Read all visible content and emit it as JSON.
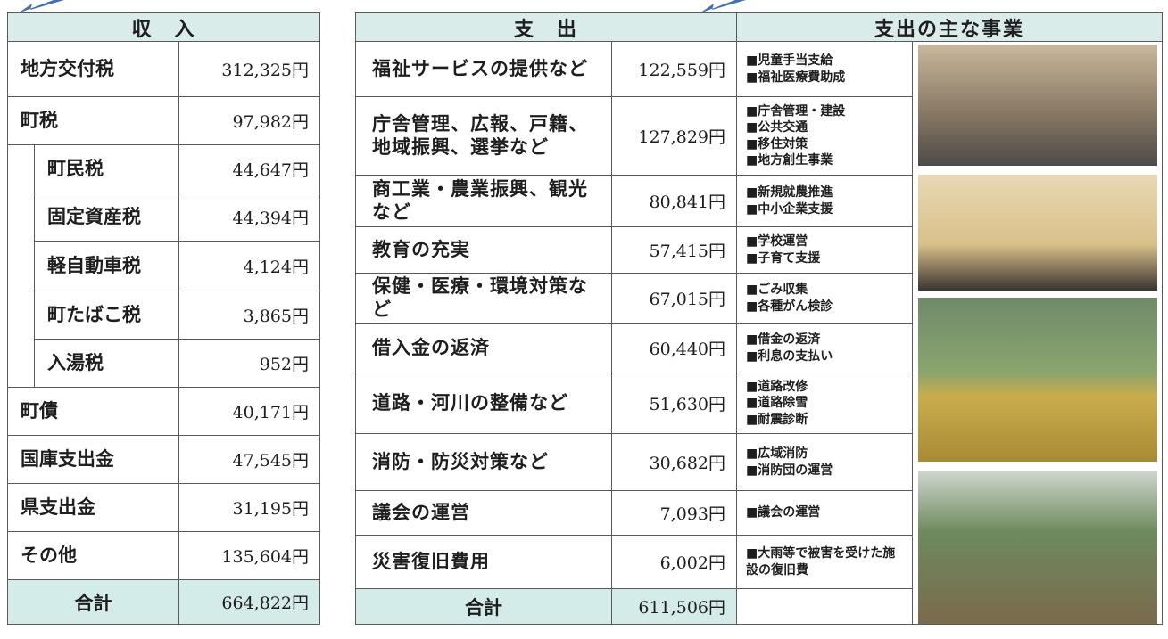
{
  "income": {
    "header": "収　入",
    "rows": [
      {
        "label": "地方交付税",
        "amount": "312,325円"
      },
      {
        "label": "町税",
        "amount": "97,982円",
        "items": [
          {
            "label": "町民税",
            "amount": "44,647円"
          },
          {
            "label": "固定資産税",
            "amount": "44,394円"
          },
          {
            "label": "軽自動車税",
            "amount": "4,124円"
          },
          {
            "label": "町たばこ税",
            "amount": "3,865円"
          },
          {
            "label": "入湯税",
            "amount": "952円"
          }
        ]
      },
      {
        "label": "町債",
        "amount": "40,171円"
      },
      {
        "label": "国庫支出金",
        "amount": "47,545円"
      },
      {
        "label": "県支出金",
        "amount": "31,195円"
      },
      {
        "label": "その他",
        "amount": "135,604円"
      }
    ],
    "total": {
      "label": "合計",
      "amount": "664,822円"
    }
  },
  "expenditure": {
    "header": "支　出",
    "projects_header": "支出の主な事業",
    "rows": [
      {
        "label": "福祉サービスの提供など",
        "amount": "122,559円",
        "projects": [
          "■児童手当支給",
          "■福祉医療費助成"
        ]
      },
      {
        "label": "庁舎管理、広報、戸籍、地域振興、選挙など",
        "amount": "127,829円",
        "projects": [
          "■庁舎管理・建設",
          "■公共交通",
          "■移住対策",
          "■地方創生事業"
        ]
      },
      {
        "label": "商工業・農業振興、観光など",
        "amount": "80,841円",
        "projects": [
          "■新規就農推進",
          "■中小企業支援"
        ]
      },
      {
        "label": "教育の充実",
        "amount": "57,415円",
        "projects": [
          "■学校運営",
          "■子育て支援"
        ]
      },
      {
        "label": "保健・医療・環境対策など",
        "amount": "67,015円",
        "projects": [
          "■ごみ収集",
          "■各種がん検診"
        ]
      },
      {
        "label": "借入金の返済",
        "amount": "60,440円",
        "projects": [
          "■借金の返済",
          "■利息の支払い"
        ]
      },
      {
        "label": "道路・河川の整備など",
        "amount": "51,630円",
        "projects": [
          "■道路改修",
          "■道路除雪",
          "■耐震診断"
        ]
      },
      {
        "label": "消防・防災対策など",
        "amount": "30,682円",
        "projects": [
          "■広域消防",
          "■消防団の運営"
        ]
      },
      {
        "label": "議会の運営",
        "amount": "7,093円",
        "projects": [
          "■議会の運営"
        ]
      },
      {
        "label": "災害復旧費用",
        "amount": "6,002円",
        "projects": [
          "■大雨等で被害を受けた施設の復旧費"
        ]
      }
    ],
    "total": {
      "label": "合計",
      "amount": "611,506円"
    }
  }
}
